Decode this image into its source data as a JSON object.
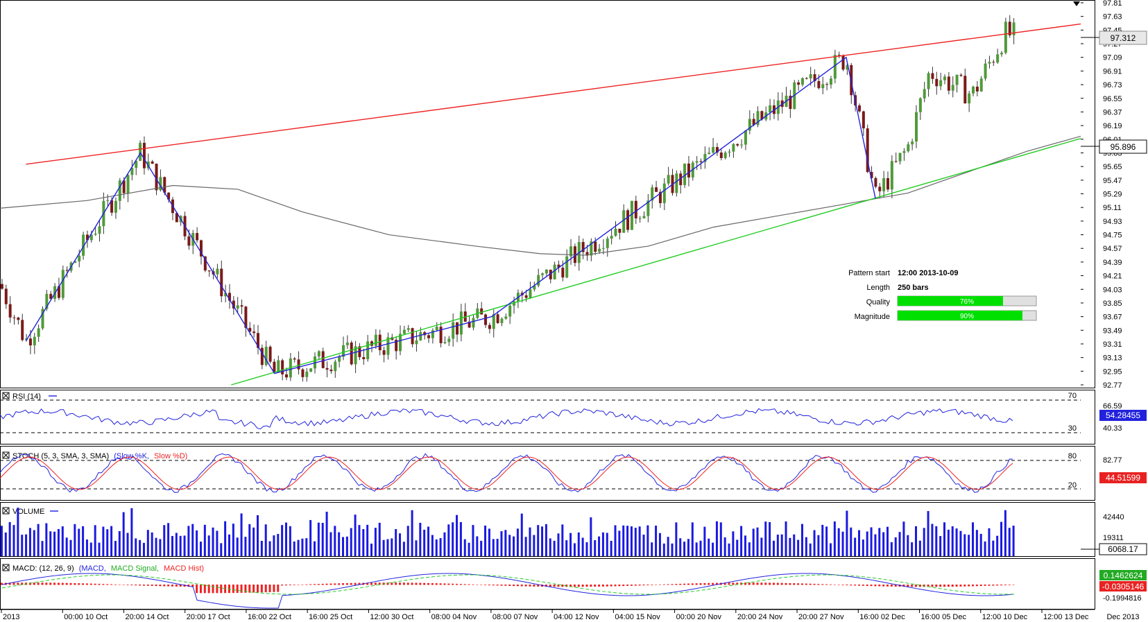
{
  "chart_data": {
    "type": "candlestick",
    "main": {
      "y_ticks": [
        "97.81",
        "97.63",
        "97.45",
        "97.27",
        "97.09",
        "96.91",
        "96.73",
        "96.55",
        "96.37",
        "96.19",
        "96.01",
        "95.83",
        "95.65",
        "95.47",
        "95.29",
        "95.11",
        "94.93",
        "94.75",
        "94.57",
        "94.39",
        "94.21",
        "94.03",
        "93.85",
        "93.67",
        "93.49",
        "93.31",
        "93.13",
        "92.95",
        "92.77"
      ],
      "ylim": [
        92.77,
        97.81
      ],
      "last_price": "97.312",
      "support_price": "95.896",
      "pattern_lines": {
        "resistance": [
          [
            0.024,
            95.68
          ],
          [
            1.0,
            97.53
          ]
        ],
        "support": [
          [
            0.214,
            92.77
          ],
          [
            1.0,
            96.02
          ]
        ],
        "zigzag": [
          [
            0.024,
            93.35
          ],
          [
            0.13,
            95.83
          ],
          [
            0.254,
            92.92
          ],
          [
            0.455,
            93.67
          ],
          [
            0.783,
            97.09
          ],
          [
            0.81,
            95.23
          ]
        ]
      },
      "ma_curve": [
        [
          0.0,
          95.1
        ],
        [
          0.08,
          95.2
        ],
        [
          0.16,
          95.4
        ],
        [
          0.22,
          95.35
        ],
        [
          0.28,
          95.05
        ],
        [
          0.36,
          94.75
        ],
        [
          0.44,
          94.6
        ],
        [
          0.5,
          94.5
        ],
        [
          0.54,
          94.48
        ],
        [
          0.6,
          94.6
        ],
        [
          0.66,
          94.85
        ],
        [
          0.72,
          95.0
        ],
        [
          0.78,
          95.15
        ],
        [
          0.84,
          95.3
        ],
        [
          0.9,
          95.6
        ],
        [
          0.95,
          95.85
        ],
        [
          1.0,
          96.05
        ]
      ]
    },
    "info": {
      "pattern_start_label": "Pattern start",
      "pattern_start": "12:00 2013-10-09",
      "length_label": "Length",
      "length": "250 bars",
      "quality_label": "Quality",
      "quality": 76,
      "quality_text": "76%",
      "magnitude_label": "Magnitude",
      "magnitude": 90,
      "magnitude_text": "90%"
    },
    "rsi": {
      "title": "RSI (14)",
      "levels": [
        "70",
        "30"
      ],
      "ticks": [
        "66.59",
        "40.33"
      ],
      "value": "54.28455"
    },
    "stoch": {
      "title_prefix": "STOCH (5, 3, SMA, 3, SMA)",
      "k_label": "(Slow %K,",
      "d_label": "Slow %D)",
      "levels": [
        "80",
        "20"
      ],
      "ticks": [
        "82.77"
      ],
      "value": "44.51599"
    },
    "volume": {
      "title": "VOLUME",
      "ticks": [
        "42440",
        "19311"
      ],
      "value": "6068.17"
    },
    "macd": {
      "title_prefix": "MACD: (12, 26, 9)",
      "macd_label": "(MACD,",
      "signal_label": "MACD Signal,",
      "hist_label": "MACD Hist)",
      "values": [
        "0.1462624",
        "-0.0305146"
      ],
      "ticks": [
        "-0.1994816"
      ]
    },
    "x_labels": [
      "2013",
      "00:00 10 Oct",
      "20:00 14 Oct",
      "20:00 17 Oct",
      "16:00 22 Oct",
      "16:00 25 Oct",
      "12:00 30 Oct",
      "08:00 04 Nov",
      "08:00 07 Nov",
      "04:00 12 Nov",
      "04:00 15 Nov",
      "00:00 20 Nov",
      "20:00 24 Nov",
      "20:00 27 Nov",
      "16:00 02 Dec",
      "16:00 05 Dec",
      "12:00 10 Dec",
      "12:00 13 Dec"
    ],
    "x_label_right": "Dec 2013"
  },
  "colors": {
    "up": "#4f9a3a",
    "down": "#7a1a1a",
    "resistance": "#ee2222",
    "support": "#22cc22",
    "zigzag": "#2222dd",
    "ma": "#666666",
    "volume": "#1a1ae0",
    "last_price_bg": "#e8e8e8",
    "rsi_badge": "#2222dd",
    "stoch_badge": "#e82222",
    "macd_badge1": "#22aa22",
    "macd_badge2": "#e82222",
    "bar_fill": "#00e000"
  }
}
